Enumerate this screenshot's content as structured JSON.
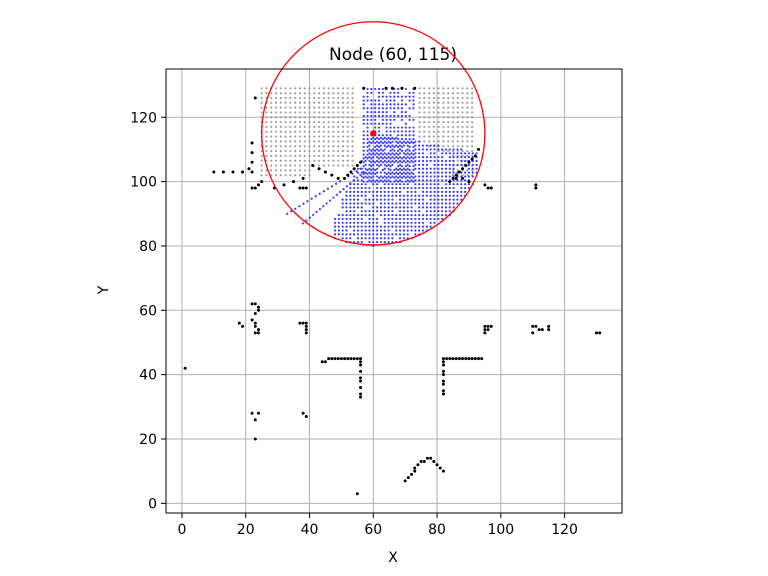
{
  "chart_data": {
    "type": "scatter",
    "title": "Node (60, 115)",
    "xlabel": "X",
    "ylabel": "Y",
    "xlim": [
      -5,
      138
    ],
    "ylim": [
      -3,
      135
    ],
    "xticks": [
      0,
      20,
      40,
      60,
      80,
      100,
      120
    ],
    "yticks": [
      0,
      20,
      40,
      60,
      80,
      100,
      120
    ],
    "grid": true,
    "colors": {
      "obstacle": "#000000",
      "unreachable": "#a0a0a0",
      "visible": "#3a3aff",
      "node": "#ff0000",
      "range_circle": "#ff0000"
    },
    "node": {
      "x": 60,
      "y": 115
    },
    "range_circle": {
      "cx": 60,
      "cy": 115,
      "r": 35
    },
    "obstacles": [
      [
        10,
        103
      ],
      [
        13,
        103
      ],
      [
        16,
        103
      ],
      [
        19,
        103
      ],
      [
        21,
        104
      ],
      [
        23,
        126
      ],
      [
        22,
        112
      ],
      [
        22,
        109
      ],
      [
        22,
        106
      ],
      [
        22,
        103
      ],
      [
        22,
        98
      ],
      [
        23,
        98
      ],
      [
        24,
        99
      ],
      [
        25,
        100
      ],
      [
        29,
        98
      ],
      [
        32,
        99
      ],
      [
        35,
        100
      ],
      [
        38,
        101
      ],
      [
        37,
        98
      ],
      [
        38,
        98
      ],
      [
        39,
        98
      ],
      [
        41,
        105
      ],
      [
        43,
        104
      ],
      [
        45,
        103
      ],
      [
        47,
        102
      ],
      [
        49,
        101
      ],
      [
        51,
        101
      ],
      [
        52,
        102
      ],
      [
        53,
        103
      ],
      [
        54,
        104
      ],
      [
        55,
        105
      ],
      [
        56,
        106
      ],
      [
        57,
        129
      ],
      [
        64,
        129
      ],
      [
        66,
        129
      ],
      [
        69,
        129
      ],
      [
        73,
        129
      ],
      [
        84,
        100
      ],
      [
        85,
        101
      ],
      [
        86,
        102
      ],
      [
        87,
        103
      ],
      [
        88,
        104
      ],
      [
        89,
        105
      ],
      [
        90,
        106
      ],
      [
        91,
        107
      ],
      [
        92,
        108
      ],
      [
        93,
        110
      ],
      [
        86,
        101
      ],
      [
        88,
        101
      ],
      [
        90,
        100
      ],
      [
        95,
        99
      ],
      [
        96,
        98
      ],
      [
        97,
        98
      ],
      [
        111,
        98
      ],
      [
        111,
        99
      ],
      [
        22,
        62
      ],
      [
        23,
        62
      ],
      [
        24,
        61
      ],
      [
        24,
        60
      ],
      [
        23,
        59
      ],
      [
        22,
        57
      ],
      [
        23,
        56
      ],
      [
        23,
        55
      ],
      [
        24,
        54
      ],
      [
        23,
        53
      ],
      [
        24,
        53
      ],
      [
        18,
        56
      ],
      [
        19,
        55
      ],
      [
        37,
        56
      ],
      [
        38,
        56
      ],
      [
        39,
        56
      ],
      [
        39,
        55
      ],
      [
        39,
        54
      ],
      [
        39,
        53
      ],
      [
        44,
        44
      ],
      [
        45,
        44
      ],
      [
        46,
        45
      ],
      [
        47,
        45
      ],
      [
        48,
        45
      ],
      [
        49,
        45
      ],
      [
        50,
        45
      ],
      [
        51,
        45
      ],
      [
        52,
        45
      ],
      [
        53,
        45
      ],
      [
        54,
        45
      ],
      [
        55,
        45
      ],
      [
        56,
        45
      ],
      [
        56,
        44
      ],
      [
        56,
        43
      ],
      [
        56,
        41
      ],
      [
        56,
        39
      ],
      [
        56,
        38
      ],
      [
        56,
        36
      ],
      [
        56,
        34
      ],
      [
        56,
        33
      ],
      [
        82,
        45
      ],
      [
        83,
        45
      ],
      [
        84,
        45
      ],
      [
        85,
        45
      ],
      [
        86,
        45
      ],
      [
        87,
        45
      ],
      [
        88,
        45
      ],
      [
        89,
        45
      ],
      [
        90,
        45
      ],
      [
        91,
        45
      ],
      [
        92,
        45
      ],
      [
        93,
        45
      ],
      [
        94,
        45
      ],
      [
        82,
        44
      ],
      [
        82,
        43
      ],
      [
        82,
        41
      ],
      [
        82,
        40
      ],
      [
        82,
        38
      ],
      [
        82,
        37
      ],
      [
        82,
        35
      ],
      [
        82,
        34
      ],
      [
        95,
        55
      ],
      [
        96,
        55
      ],
      [
        97,
        55
      ],
      [
        95,
        54
      ],
      [
        95,
        53
      ],
      [
        96,
        54
      ],
      [
        110,
        55
      ],
      [
        111,
        55
      ],
      [
        112,
        54
      ],
      [
        113,
        54
      ],
      [
        110,
        53
      ],
      [
        115,
        55
      ],
      [
        115,
        54
      ],
      [
        130,
        53
      ],
      [
        131,
        53
      ],
      [
        1,
        42
      ],
      [
        22,
        28
      ],
      [
        24,
        28
      ],
      [
        23,
        26
      ],
      [
        23,
        20
      ],
      [
        38,
        28
      ],
      [
        39,
        27
      ],
      [
        55,
        3
      ],
      [
        70,
        7
      ],
      [
        71,
        8
      ],
      [
        72,
        9
      ],
      [
        73,
        10
      ],
      [
        73,
        11
      ],
      [
        74,
        12
      ],
      [
        75,
        13
      ],
      [
        76,
        13
      ],
      [
        77,
        14
      ],
      [
        78,
        14
      ],
      [
        79,
        13
      ],
      [
        80,
        12
      ],
      [
        81,
        11
      ],
      [
        82,
        10
      ]
    ],
    "unreachable_region": {
      "x_range": [
        25,
        91
      ],
      "y_range": [
        102,
        129
      ],
      "step": 1.5,
      "excluded_rect": {
        "x": [
          54,
          74
        ],
        "y": [
          102,
          130
        ]
      }
    },
    "visible_fan": {
      "apex": [
        60,
        115
      ],
      "x_range": [
        48,
        93
      ],
      "y_range": [
        80,
        129
      ],
      "step": 1.2,
      "radius": 35,
      "angle_deg_range": [
        -115,
        -10
      ]
    },
    "visible_column": {
      "x_range": [
        57,
        73
      ],
      "y_range": [
        100,
        129
      ],
      "step": 1.2
    },
    "visible_streaks": [
      {
        "from": [
          56,
          104
        ],
        "to": [
          33,
          90
        ]
      },
      {
        "from": [
          57,
          103
        ],
        "to": [
          38,
          87
        ]
      }
    ]
  }
}
